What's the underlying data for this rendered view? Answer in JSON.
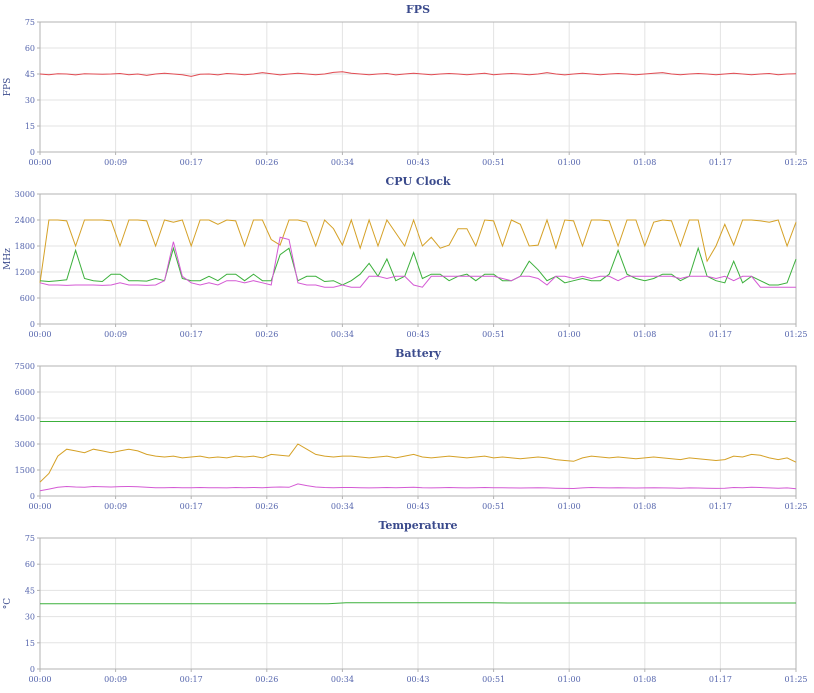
{
  "style": {
    "title_color": "#3a4a8c",
    "tick_color": "#5565ad",
    "grid_color": "#e3e3e3",
    "axis_color": "#b3b3b3",
    "background": "#ffffff"
  },
  "chart_data": [
    {
      "type": "line",
      "name": "fps",
      "title": "FPS",
      "ylabel": "FPS",
      "ylim": [
        0,
        75
      ],
      "yticks": [
        0,
        15,
        30,
        45,
        60,
        75
      ],
      "xlim": [
        0,
        85
      ],
      "xtick_labels": [
        "00:00",
        "00:09",
        "00:17",
        "00:26",
        "00:34",
        "00:43",
        "00:51",
        "01:00",
        "01:08",
        "01:17",
        "01:25"
      ],
      "grid": true,
      "legend": "none",
      "series": [
        {
          "name": "fps-red",
          "color": "#e14b52",
          "values": [
            45,
            44.6,
            45.2,
            45,
            44.5,
            45.1,
            45,
            44.8,
            45,
            45.3,
            44.6,
            45,
            44.2,
            45,
            45.4,
            45,
            44.6,
            43.6,
            44.8,
            45,
            44.5,
            45.3,
            45,
            44.6,
            45,
            45.8,
            45.2,
            44.5,
            45,
            45.4,
            45,
            44.6,
            45,
            45.9,
            46.3,
            45.4,
            45,
            44.6,
            45,
            45.3,
            44.5,
            45,
            45.4,
            45,
            44.6,
            45,
            45.3,
            45,
            44.6,
            45,
            45.4,
            44.6,
            45,
            45.3,
            45,
            44.6,
            45,
            45.8,
            45,
            44.5,
            45,
            45.4,
            45,
            44.6,
            45,
            45.3,
            45,
            44.6,
            45,
            45.4,
            45.8,
            45,
            44.6,
            45,
            45.3,
            45,
            44.6,
            45,
            45.4,
            45,
            44.6,
            45,
            45.3,
            44.6,
            45,
            45.1
          ]
        }
      ]
    },
    {
      "type": "line",
      "name": "cpu-clock",
      "title": "CPU Clock",
      "ylabel": "MHz",
      "ylim": [
        0,
        3000
      ],
      "yticks": [
        0,
        600,
        1200,
        1800,
        2400,
        3000
      ],
      "xlim": [
        0,
        85
      ],
      "xtick_labels": [
        "00:00",
        "00:09",
        "00:17",
        "00:26",
        "00:34",
        "00:43",
        "00:51",
        "01:00",
        "01:08",
        "01:17",
        "01:25"
      ],
      "grid": true,
      "legend": "none",
      "series": [
        {
          "name": "cpu-gold",
          "color": "#d5a127",
          "values": [
            950,
            2400,
            2400,
            2380,
            1800,
            2400,
            2400,
            2400,
            2380,
            1800,
            2400,
            2400,
            2380,
            1800,
            2400,
            2350,
            2400,
            1800,
            2400,
            2400,
            2300,
            2400,
            2380,
            1800,
            2400,
            2400,
            1950,
            1820,
            2400,
            2400,
            2350,
            1800,
            2400,
            2200,
            1820,
            2400,
            1750,
            2400,
            1800,
            2400,
            2100,
            1800,
            2400,
            1800,
            2000,
            1750,
            1820,
            2200,
            2200,
            1800,
            2400,
            2380,
            1800,
            2400,
            2300,
            1800,
            1820,
            2400,
            1750,
            2400,
            2380,
            1800,
            2400,
            2400,
            2380,
            1800,
            2400,
            2400,
            1800,
            2350,
            2400,
            2380,
            1800,
            2400,
            2400,
            1450,
            1800,
            2300,
            1820,
            2400,
            2400,
            2380,
            2350,
            2400,
            1800,
            2350
          ]
        },
        {
          "name": "cpu-green",
          "color": "#3cb03c",
          "values": [
            1000,
            980,
            1000,
            1020,
            1700,
            1050,
            1000,
            980,
            1150,
            1150,
            1000,
            1000,
            990,
            1050,
            1000,
            1750,
            1050,
            1000,
            1000,
            1100,
            1000,
            1150,
            1150,
            1000,
            1150,
            1000,
            1000,
            1600,
            1750,
            1000,
            1100,
            1100,
            980,
            1000,
            900,
            1000,
            1150,
            1400,
            1100,
            1500,
            1000,
            1100,
            1650,
            1050,
            1150,
            1150,
            1000,
            1100,
            1150,
            1000,
            1150,
            1150,
            1000,
            1000,
            1100,
            1450,
            1250,
            1000,
            1100,
            950,
            1000,
            1050,
            1000,
            1000,
            1150,
            1700,
            1150,
            1050,
            1000,
            1050,
            1150,
            1150,
            1000,
            1100,
            1750,
            1100,
            1000,
            950,
            1450,
            950,
            1100,
            1000,
            900,
            900,
            950,
            1500
          ]
        },
        {
          "name": "cpu-magenta",
          "color": "#d45ad4",
          "values": [
            950,
            900,
            900,
            890,
            900,
            900,
            900,
            890,
            900,
            950,
            900,
            900,
            890,
            900,
            1000,
            1900,
            1100,
            950,
            900,
            950,
            900,
            1000,
            1000,
            950,
            1000,
            950,
            900,
            2000,
            1950,
            950,
            900,
            900,
            850,
            850,
            900,
            850,
            850,
            1100,
            1100,
            1050,
            1100,
            1100,
            900,
            850,
            1100,
            1100,
            1100,
            1100,
            1100,
            1100,
            1100,
            1100,
            1050,
            1000,
            1100,
            1100,
            1050,
            900,
            1100,
            1100,
            1050,
            1100,
            1050,
            1100,
            1100,
            1000,
            1100,
            1100,
            1100,
            1100,
            1100,
            1100,
            1050,
            1100,
            1100,
            1100,
            1050,
            1100,
            1000,
            1100,
            1100,
            850,
            850,
            850,
            850,
            850
          ]
        }
      ]
    },
    {
      "type": "line",
      "name": "battery",
      "title": "Battery",
      "ylabel": "",
      "ylim": [
        0,
        7500
      ],
      "yticks": [
        0,
        1500,
        3000,
        4500,
        6000,
        7500
      ],
      "xlim": [
        0,
        85
      ],
      "xtick_labels": [
        "00:00",
        "00:09",
        "00:17",
        "00:26",
        "00:34",
        "00:43",
        "00:51",
        "01:00",
        "01:08",
        "01:17",
        "01:25"
      ],
      "grid": true,
      "legend": "none",
      "series": [
        {
          "name": "battery-green",
          "color": "#3cb03c",
          "values": [
            4300,
            4300
          ]
        },
        {
          "name": "battery-gold",
          "color": "#d5a127",
          "values": [
            800,
            1300,
            2300,
            2700,
            2600,
            2500,
            2700,
            2600,
            2500,
            2600,
            2700,
            2600,
            2400,
            2300,
            2250,
            2300,
            2200,
            2250,
            2300,
            2200,
            2250,
            2200,
            2300,
            2250,
            2300,
            2200,
            2400,
            2350,
            2300,
            3000,
            2700,
            2400,
            2300,
            2250,
            2300,
            2300,
            2250,
            2200,
            2250,
            2300,
            2200,
            2300,
            2400,
            2250,
            2200,
            2250,
            2300,
            2250,
            2200,
            2250,
            2300,
            2200,
            2250,
            2200,
            2150,
            2200,
            2250,
            2200,
            2100,
            2050,
            2000,
            2200,
            2300,
            2250,
            2200,
            2250,
            2200,
            2150,
            2200,
            2250,
            2200,
            2150,
            2100,
            2200,
            2150,
            2100,
            2050,
            2100,
            2300,
            2250,
            2400,
            2350,
            2200,
            2100,
            2200,
            1950
          ]
        },
        {
          "name": "battery-magenta",
          "color": "#d45ad4",
          "values": [
            300,
            400,
            500,
            550,
            520,
            500,
            550,
            530,
            520,
            540,
            550,
            530,
            500,
            480,
            480,
            490,
            480,
            480,
            490,
            480,
            480,
            470,
            490,
            480,
            490,
            480,
            500,
            520,
            500,
            700,
            600,
            520,
            490,
            480,
            490,
            490,
            480,
            470,
            480,
            490,
            480,
            490,
            500,
            480,
            470,
            480,
            490,
            480,
            470,
            480,
            490,
            480,
            480,
            470,
            460,
            470,
            480,
            470,
            450,
            440,
            430,
            470,
            490,
            480,
            470,
            480,
            470,
            460,
            470,
            480,
            470,
            460,
            450,
            470,
            460,
            450,
            440,
            450,
            490,
            480,
            500,
            490,
            470,
            450,
            470,
            420
          ]
        }
      ]
    },
    {
      "type": "line",
      "name": "temperature",
      "title": "Temperature",
      "ylabel": "°C",
      "ylim": [
        0,
        75
      ],
      "yticks": [
        0,
        15,
        30,
        45,
        60,
        75
      ],
      "xlim": [
        0,
        85
      ],
      "xtick_labels": [
        "00:00",
        "00:09",
        "00:17",
        "00:26",
        "00:34",
        "00:43",
        "00:51",
        "01:00",
        "01:08",
        "01:17",
        "01:25"
      ],
      "grid": true,
      "legend": "none",
      "series": [
        {
          "name": "temp-green",
          "color": "#3cb03c",
          "values": [
            37.3,
            37.3,
            37.3,
            37.3,
            37.3,
            37.3,
            37.3,
            37.3,
            37.3,
            37.3,
            37.3,
            37.3,
            37.3,
            37.3,
            37.3,
            37.3,
            37.4,
            37.9,
            37.9,
            37.9,
            37.9,
            37.9,
            37.9,
            37.9,
            37.9,
            37.9,
            37.8,
            37.8,
            37.8,
            37.8,
            37.8,
            37.8,
            37.8,
            37.8,
            37.8,
            37.8,
            37.8,
            37.8,
            37.8,
            37.8,
            37.8,
            37.8,
            37.8
          ]
        }
      ]
    }
  ]
}
